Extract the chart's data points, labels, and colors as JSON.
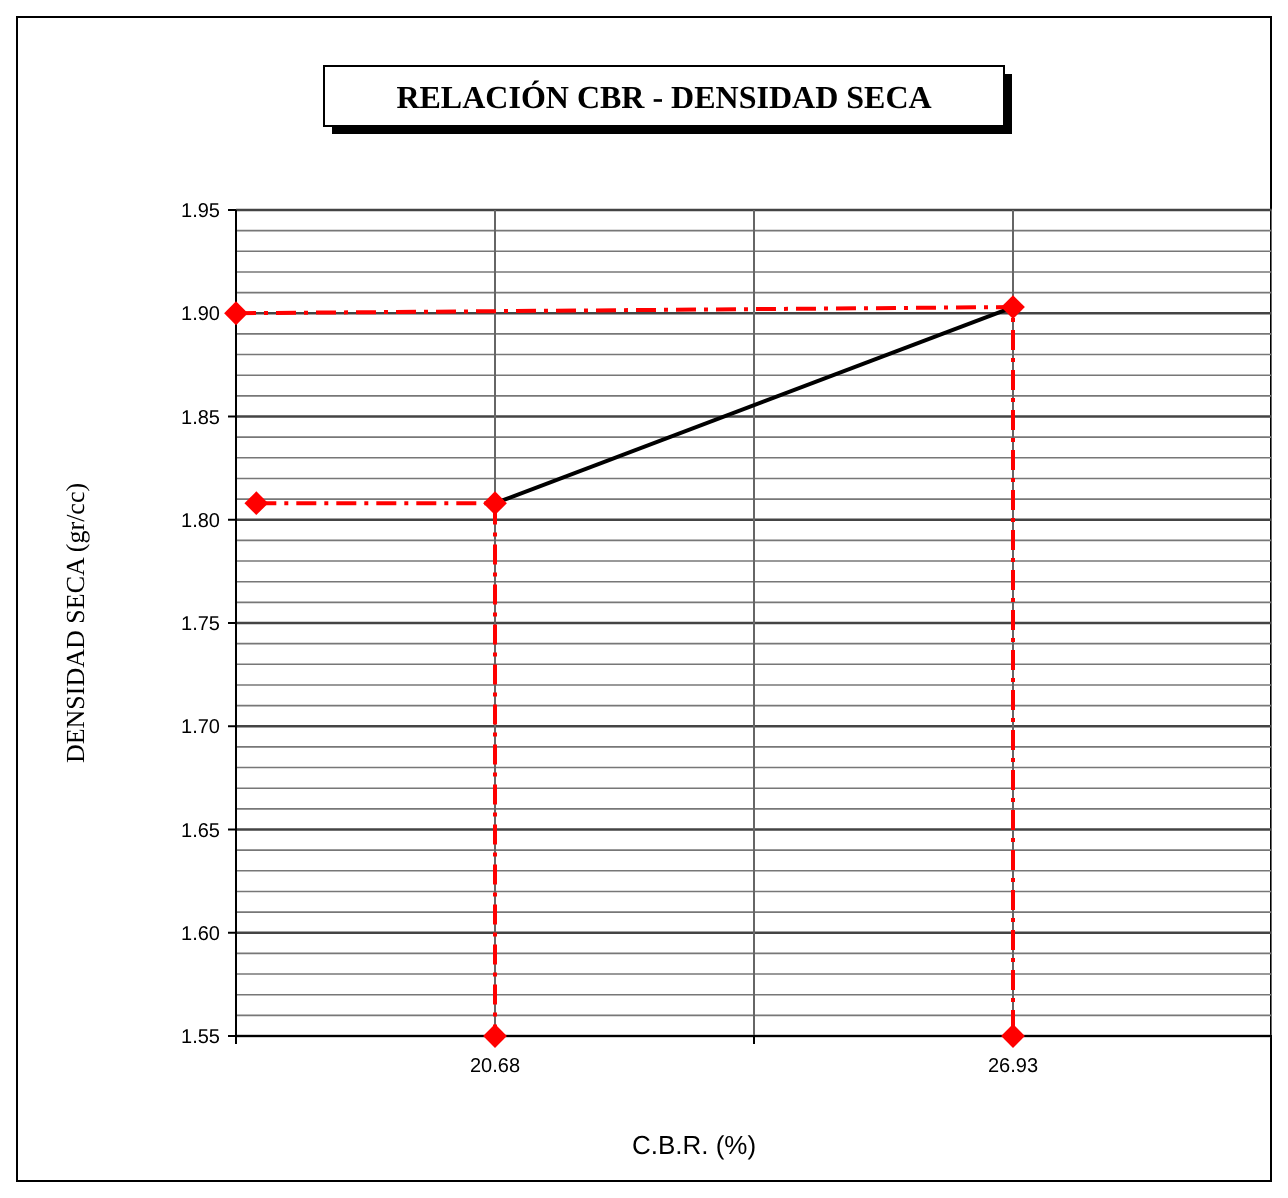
{
  "chart_data": {
    "type": "line",
    "title": "RELACIÓN CBR - DENSIDAD SECA",
    "xlabel": "C.B.R. (%)",
    "ylabel": "DENSIDAD SECA (gr/cc)",
    "xlim": [
      17.555,
      30.055
    ],
    "xticks": [
      {
        "value": 17.555,
        "label": null
      },
      20.68,
      {
        "value": 23.805,
        "label": null
      },
      26.93,
      {
        "value": 30.055,
        "label": null
      }
    ],
    "ylim": [
      1.55,
      1.95
    ],
    "yticks": [
      1.55,
      {
        "value": 1.56,
        "label": null
      },
      {
        "value": 1.57,
        "label": null
      },
      {
        "value": 1.58,
        "label": null
      },
      {
        "value": 1.59,
        "label": null
      },
      {
        "value": 1.6,
        "label": "1.60"
      },
      {
        "value": 1.61,
        "label": null
      },
      {
        "value": 1.62,
        "label": null
      },
      {
        "value": 1.63,
        "label": null
      },
      {
        "value": 1.64,
        "label": null
      },
      1.65,
      {
        "value": 1.66,
        "label": null
      },
      {
        "value": 1.67,
        "label": null
      },
      {
        "value": 1.68,
        "label": null
      },
      {
        "value": 1.69,
        "label": null
      },
      {
        "value": 1.7,
        "label": "1.70"
      },
      {
        "value": 1.71,
        "label": null
      },
      {
        "value": 1.72,
        "label": null
      },
      {
        "value": 1.73,
        "label": null
      },
      {
        "value": 1.74,
        "label": null
      },
      1.75,
      {
        "value": 1.76,
        "label": null
      },
      {
        "value": 1.77,
        "label": null
      },
      {
        "value": 1.78,
        "label": null
      },
      {
        "value": 1.79,
        "label": null
      },
      {
        "value": 1.8,
        "label": "1.80"
      },
      {
        "value": 1.81,
        "label": null
      },
      {
        "value": 1.82,
        "label": null
      },
      {
        "value": 1.83,
        "label": null
      },
      {
        "value": 1.84,
        "label": null
      },
      1.85,
      {
        "value": 1.86,
        "label": null
      },
      {
        "value": 1.87,
        "label": null
      },
      {
        "value": 1.88,
        "label": null
      },
      {
        "value": 1.89,
        "label": null
      },
      {
        "value": 1.9,
        "label": "1.90"
      },
      {
        "value": 1.91,
        "label": null
      },
      {
        "value": 1.92,
        "label": null
      },
      {
        "value": 1.93,
        "label": null
      },
      {
        "value": 1.94,
        "label": null
      },
      1.95
    ],
    "grid": true,
    "series": [
      {
        "color": "#000000",
        "x": [
          20.68,
          26.93
        ],
        "values": [
          1.808,
          1.903
        ],
        "marker": "none",
        "line_style": "solid"
      },
      {
        "color": "#ff0000",
        "x": [
          17.555,
          26.93,
          26.93
        ],
        "values": [
          1.9,
          1.903,
          1.55
        ],
        "marker": "diamond",
        "line_style": "dashed"
      },
      {
        "color": "#ff0000",
        "x": [
          17.8,
          20.68,
          20.68
        ],
        "values": [
          1.808,
          1.808,
          1.55
        ],
        "marker": "diamond",
        "line_style": "dashed"
      }
    ]
  }
}
